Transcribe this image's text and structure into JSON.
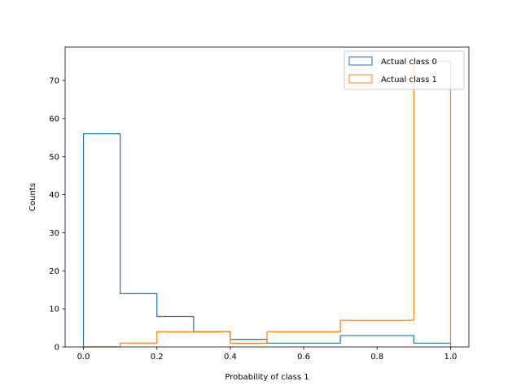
{
  "chart_data": {
    "type": "histogram",
    "xlabel": "Probability of class 1",
    "ylabel": "Counts",
    "xlim": [
      -0.05,
      1.05
    ],
    "ylim": [
      0,
      78.75
    ],
    "x_ticks": [
      0.0,
      0.2,
      0.4,
      0.6,
      0.8,
      1.0
    ],
    "x_tick_labels": [
      "0.0",
      "0.2",
      "0.4",
      "0.6",
      "0.8",
      "1.0"
    ],
    "y_ticks": [
      0,
      10,
      20,
      30,
      40,
      50,
      60,
      70
    ],
    "y_tick_labels": [
      "0",
      "10",
      "20",
      "30",
      "40",
      "50",
      "60",
      "70"
    ],
    "bin_edges": [
      0.0,
      0.1,
      0.2,
      0.3,
      0.4,
      0.5,
      0.6,
      0.7,
      0.8,
      0.9,
      1.0
    ],
    "grid": false,
    "legend_position": "upper right",
    "series": [
      {
        "name": "Actual class 0",
        "color": "#1f77b4",
        "histtype": "step",
        "counts": [
          56,
          14,
          8,
          4,
          2,
          1,
          1,
          3,
          3,
          1
        ]
      },
      {
        "name": "Actual class 1",
        "color": "#ff7f0e",
        "histtype": "step",
        "counts": [
          0,
          1,
          4,
          4,
          1,
          4,
          4,
          7,
          7,
          75
        ]
      }
    ]
  }
}
